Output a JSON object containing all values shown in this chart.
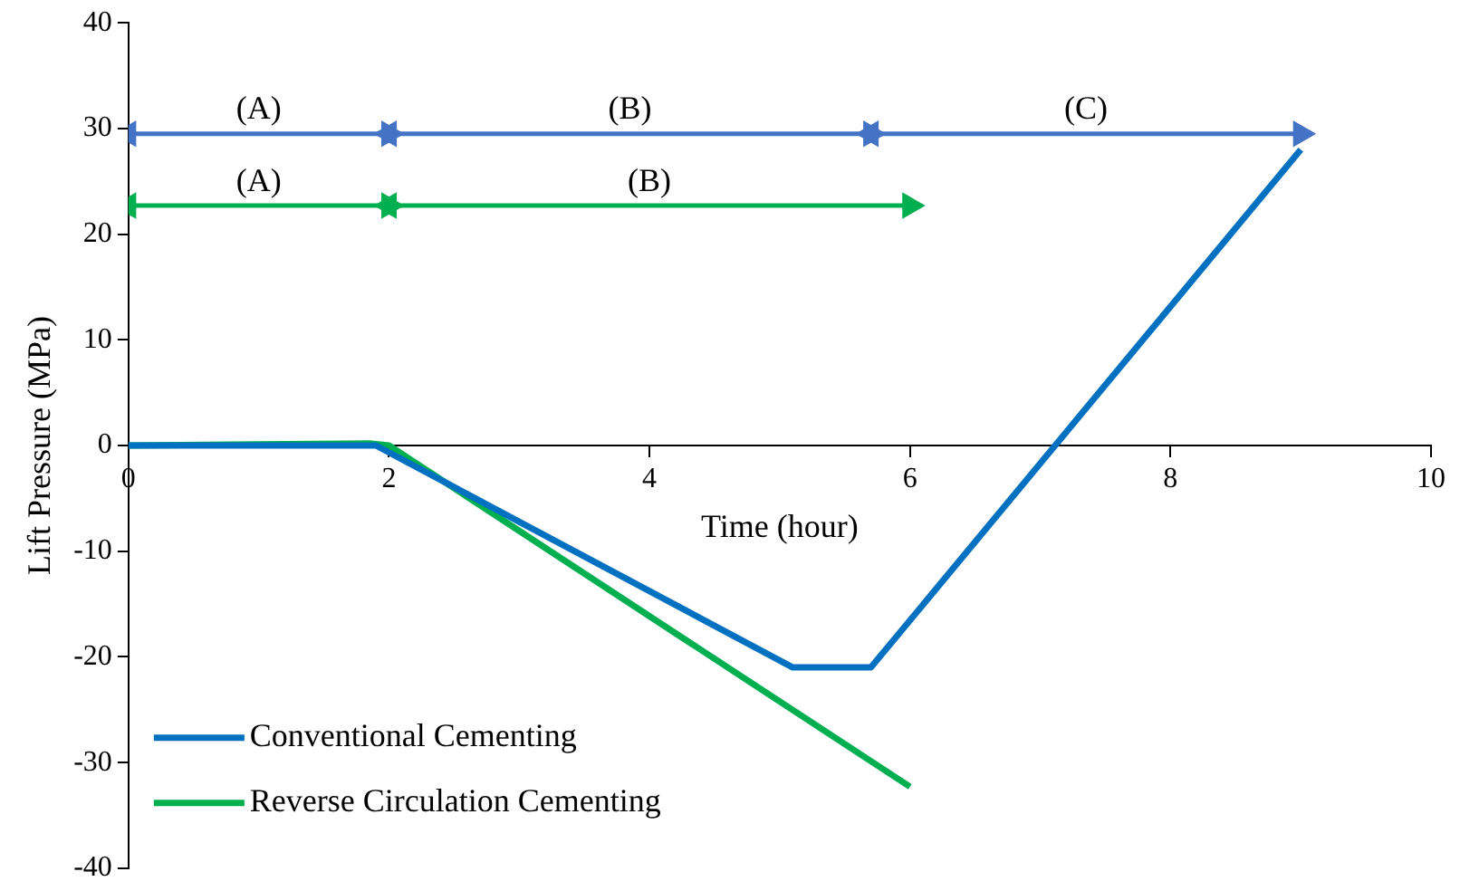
{
  "chart_data": {
    "type": "line",
    "xlabel": "Time (hour)",
    "ylabel": "Lift Pressure (MPa)",
    "xlim": [
      0,
      10
    ],
    "xticks": [
      0,
      2,
      4,
      6,
      8,
      10
    ],
    "ylim": [
      -40,
      40
    ],
    "yticks": [
      -40,
      -30,
      -20,
      -10,
      0,
      10,
      20,
      30,
      40
    ],
    "grid": false,
    "legend": "bottom left",
    "series": [
      {
        "name": "Conventional Cementing",
        "color": "#0070c0",
        "x": [
          0,
          1.9,
          5.1,
          5.7,
          9
        ],
        "values": [
          0,
          0,
          -21,
          -21,
          28
        ]
      },
      {
        "name": "Reverse Circulation Cementing",
        "color": "#00b050",
        "x": [
          0,
          1.85,
          2,
          6
        ],
        "values": [
          0,
          0.2,
          0,
          -32.3
        ]
      },
      {
        "color": "#4472c4",
        "marker": "triangle",
        "x": [
          0,
          2
        ],
        "values": [
          29.5,
          29.5
        ]
      },
      {
        "color": "#4472c4",
        "marker": "triangle",
        "x": [
          2,
          5.7
        ],
        "values": [
          29.5,
          29.5
        ]
      },
      {
        "color": "#4472c4",
        "marker": "triangle",
        "x": [
          5.7,
          9
        ],
        "values": [
          29.5,
          29.5
        ]
      },
      {
        "color": "#00b050",
        "marker": "triangle",
        "x": [
          0,
          2
        ],
        "values": [
          22.7,
          22.7
        ]
      },
      {
        "color": "#00b050",
        "marker": "triangle",
        "x": [
          2,
          6
        ],
        "values": [
          22.7,
          22.7
        ]
      }
    ],
    "annotations": [
      {
        "text": "(A)",
        "x": 1,
        "y": 29.5
      },
      {
        "text": "(B)",
        "x": 3.85,
        "y": 29.5
      },
      {
        "text": "(C)",
        "x": 7.35,
        "y": 29.5
      },
      {
        "text": "(A)",
        "x": 1,
        "y": 22.7
      },
      {
        "text": "(B)",
        "x": 4,
        "y": 22.7
      }
    ]
  }
}
